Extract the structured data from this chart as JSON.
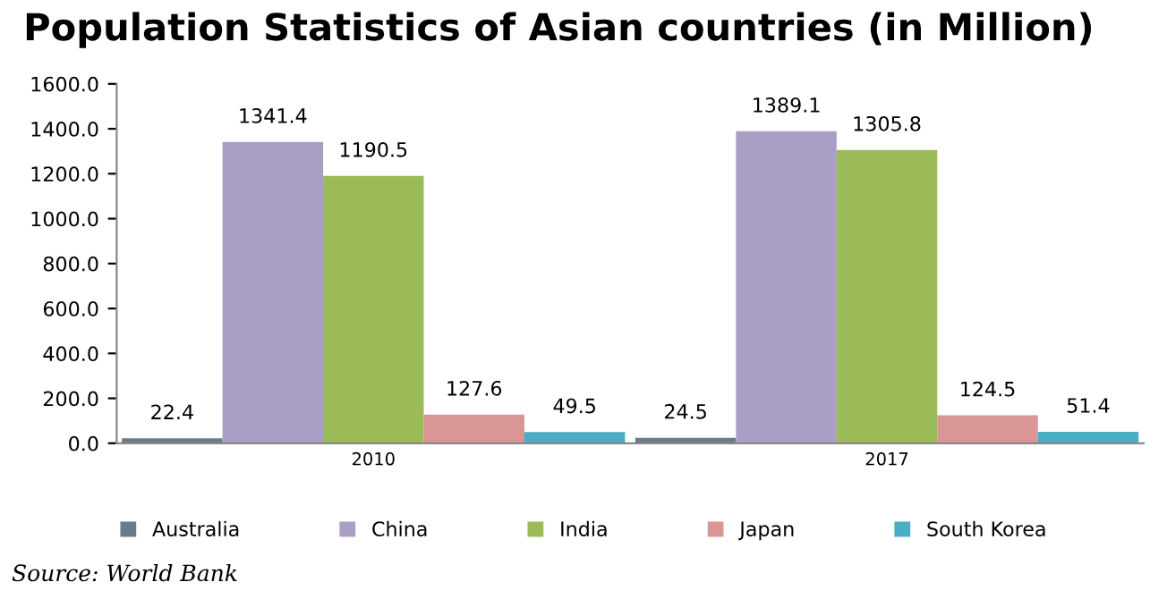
{
  "chart_data": {
    "type": "bar",
    "title": "Population Statistics of Asian countries (in Million)",
    "categories": [
      "2010",
      "2017"
    ],
    "series": [
      {
        "name": "Australia",
        "color": "#6b7b8a",
        "values": [
          22.4,
          24.5
        ]
      },
      {
        "name": "China",
        "color": "#ab9ec5",
        "values": [
          1341.4,
          1389.1
        ]
      },
      {
        "name": "India",
        "color": "#9bbb59",
        "values": [
          1190.5,
          1305.8
        ]
      },
      {
        "name": "Japan",
        "color": "#d99694",
        "values": [
          127.6,
          124.5
        ]
      },
      {
        "name": "South Korea",
        "color": "#4bacc6",
        "values": [
          49.5,
          51.4
        ]
      }
    ],
    "ylim": [
      0,
      1600
    ],
    "yticks": [
      {
        "value": 0,
        "label": "0.0"
      },
      {
        "value": 200,
        "label": "200.0"
      },
      {
        "value": 400,
        "label": "400.0"
      },
      {
        "value": 600,
        "label": "600.0"
      },
      {
        "value": 800,
        "label": "800.0"
      },
      {
        "value": 1000,
        "label": "1000.0"
      },
      {
        "value": 1200,
        "label": "1200.0"
      },
      {
        "value": 1400,
        "label": "1400.0"
      },
      {
        "value": 1600,
        "label": "1600.0"
      }
    ],
    "data_labels": true,
    "grid": false,
    "legend": "bottom",
    "annotations": [
      "Source: World Bank"
    ]
  }
}
